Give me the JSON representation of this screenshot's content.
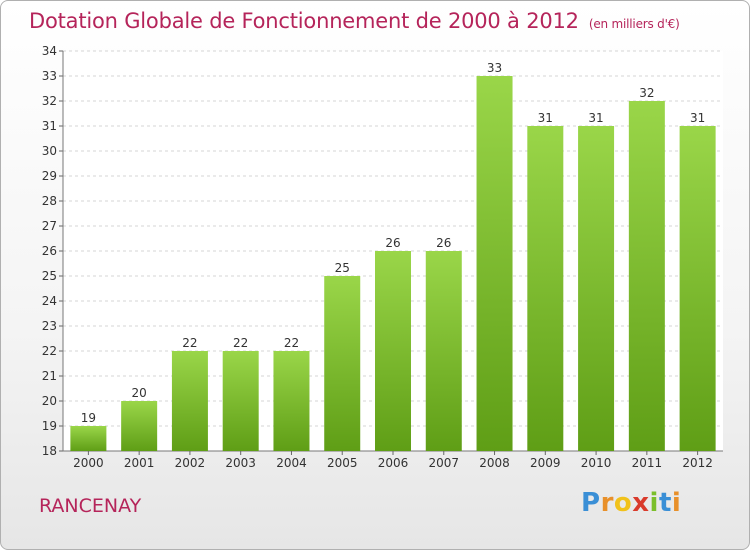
{
  "chart_data": {
    "type": "bar",
    "title": "Dotation Globale de Fonctionnement de 2000 à 2012",
    "subtitle": "(en milliers d'€)",
    "categories": [
      "2000",
      "2001",
      "2002",
      "2003",
      "2004",
      "2005",
      "2006",
      "2007",
      "2008",
      "2009",
      "2010",
      "2011",
      "2012"
    ],
    "values": [
      19,
      20,
      22,
      22,
      22,
      25,
      26,
      26,
      33,
      31,
      31,
      32,
      31
    ],
    "ylim": [
      18,
      34
    ],
    "yticks": [
      18,
      19,
      20,
      21,
      22,
      23,
      24,
      25,
      26,
      27,
      28,
      29,
      30,
      31,
      32,
      33,
      34
    ],
    "grid": true,
    "bar_color": "#7cc22e"
  },
  "footer": {
    "commune": "RANCENAY",
    "logo": {
      "letters": [
        "P",
        "r",
        "o",
        "x",
        "i",
        "t",
        "i"
      ],
      "colors": [
        "#3a8fd6",
        "#e8902a",
        "#f1c21b",
        "#d93a2b",
        "#7bbf2a",
        "#3a8fd6",
        "#e8902a"
      ]
    }
  }
}
